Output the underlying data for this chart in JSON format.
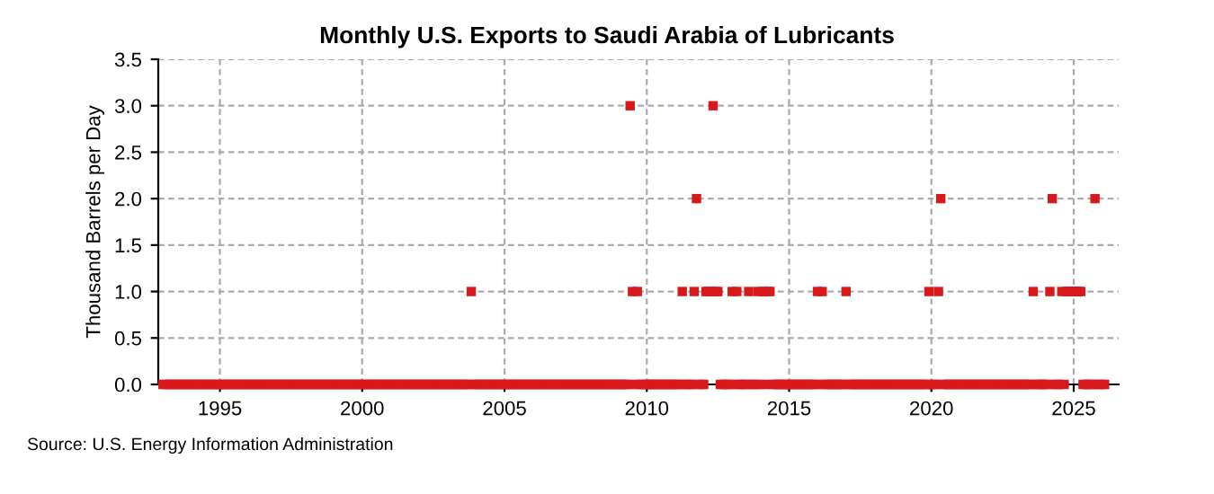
{
  "chart_data": {
    "type": "scatter",
    "title": "Monthly U.S. Exports to Saudi Arabia of Lubricants",
    "ylabel": "Thousand Barrels per Day",
    "annotations": [
      "Source: U.S. Energy Information Administration"
    ],
    "x": [
      "1993-01",
      "1993-02",
      "1993-03",
      "1993-04",
      "1993-05",
      "1993-06",
      "1993-07",
      "1993-08",
      "1993-09",
      "1993-10",
      "1993-11",
      "1993-12",
      "1994-01",
      "1994-02",
      "1994-03",
      "1994-04",
      "1994-05",
      "1994-06",
      "1994-07",
      "1994-08",
      "1994-09",
      "1994-10",
      "1994-11",
      "1994-12",
      "1995-01",
      "1995-02",
      "1995-03",
      "1995-04",
      "1995-05",
      "1995-06",
      "1995-07",
      "1995-08",
      "1995-09",
      "1995-10",
      "1995-11",
      "1995-12",
      "1996-01",
      "1996-02",
      "1996-03",
      "1996-04",
      "1996-05",
      "1996-06",
      "1996-07",
      "1996-08",
      "1996-09",
      "1996-10",
      "1996-11",
      "1996-12",
      "1997-01",
      "1997-02",
      "1997-03",
      "1997-04",
      "1997-05",
      "1997-06",
      "1997-07",
      "1997-08",
      "1997-09",
      "1997-10",
      "1997-11",
      "1997-12",
      "1998-01",
      "1998-02",
      "1998-03",
      "1998-04",
      "1998-05",
      "1998-06",
      "1998-07",
      "1998-08",
      "1998-09",
      "1998-10",
      "1998-11",
      "1998-12",
      "1999-01",
      "1999-02",
      "1999-03",
      "1999-04",
      "1999-05",
      "1999-06",
      "1999-07",
      "1999-08",
      "1999-09",
      "1999-10",
      "1999-11",
      "1999-12",
      "2000-01",
      "2000-02",
      "2000-03",
      "2000-04",
      "2000-05",
      "2000-06",
      "2000-07",
      "2000-08",
      "2000-09",
      "2000-10",
      "2000-11",
      "2000-12",
      "2001-01",
      "2001-02",
      "2001-03",
      "2001-04",
      "2001-05",
      "2001-06",
      "2001-07",
      "2001-08",
      "2001-09",
      "2001-10",
      "2001-11",
      "2001-12",
      "2002-01",
      "2002-02",
      "2002-03",
      "2002-04",
      "2002-05",
      "2002-06",
      "2002-07",
      "2002-08",
      "2002-09",
      "2002-10",
      "2002-11",
      "2002-12",
      "2003-01",
      "2003-02",
      "2003-03",
      "2003-04",
      "2003-05",
      "2003-06",
      "2003-07",
      "2003-08",
      "2003-09",
      "2003-10",
      "2003-11",
      "2003-12",
      "2004-01",
      "2004-02",
      "2004-03",
      "2004-04",
      "2004-05",
      "2004-06",
      "2004-07",
      "2004-08",
      "2004-09",
      "2004-10",
      "2004-11",
      "2004-12",
      "2005-01",
      "2005-02",
      "2005-03",
      "2005-04",
      "2005-05",
      "2005-06",
      "2005-07",
      "2005-08",
      "2005-09",
      "2005-10",
      "2005-11",
      "2005-12",
      "2006-01",
      "2006-02",
      "2006-03",
      "2006-04",
      "2006-05",
      "2006-06",
      "2006-07",
      "2006-08",
      "2006-09",
      "2006-10",
      "2006-11",
      "2006-12",
      "2007-01",
      "2007-02",
      "2007-03",
      "2007-04",
      "2007-05",
      "2007-06",
      "2007-07",
      "2007-08",
      "2007-09",
      "2007-10",
      "2007-11",
      "2007-12",
      "2008-01",
      "2008-02",
      "2008-03",
      "2008-04",
      "2008-05",
      "2008-06",
      "2008-07",
      "2008-08",
      "2008-09",
      "2008-10",
      "2008-11",
      "2008-12",
      "2009-01",
      "2009-02",
      "2009-03",
      "2009-04",
      "2009-05",
      "2009-06",
      "2009-07",
      "2009-08",
      "2009-09",
      "2009-10",
      "2009-11",
      "2009-12",
      "2010-01",
      "2010-02",
      "2010-03",
      "2010-04",
      "2010-05",
      "2010-06",
      "2010-07",
      "2010-08",
      "2010-09",
      "2010-10",
      "2010-11",
      "2010-12",
      "2011-01",
      "2011-02",
      "2011-03",
      "2011-04",
      "2011-05",
      "2011-06",
      "2011-07",
      "2011-08",
      "2011-09",
      "2011-10",
      "2011-11",
      "2011-12",
      "2012-01",
      "2012-02",
      "2012-03",
      "2012-04",
      "2012-05",
      "2012-06",
      "2012-07",
      "2012-08",
      "2012-09",
      "2012-10",
      "2012-11",
      "2012-12",
      "2013-01",
      "2013-02",
      "2013-03",
      "2013-04",
      "2013-05",
      "2013-06",
      "2013-07",
      "2013-08",
      "2013-09",
      "2013-10",
      "2013-11",
      "2013-12",
      "2014-01",
      "2014-02",
      "2014-03",
      "2014-04",
      "2014-05",
      "2014-06",
      "2014-07",
      "2014-08",
      "2014-09",
      "2014-10",
      "2014-11",
      "2014-12",
      "2015-01",
      "2015-02",
      "2015-03",
      "2015-04",
      "2015-05",
      "2015-06",
      "2015-07",
      "2015-08",
      "2015-09",
      "2015-10",
      "2015-11",
      "2015-12",
      "2016-01",
      "2016-02",
      "2016-03",
      "2016-04",
      "2016-05",
      "2016-06",
      "2016-07",
      "2016-08",
      "2016-09",
      "2016-10",
      "2016-11",
      "2016-12",
      "2017-01",
      "2017-02",
      "2017-03",
      "2017-04",
      "2017-05",
      "2017-06",
      "2017-07",
      "2017-08",
      "2017-09",
      "2017-10",
      "2017-11",
      "2017-12",
      "2018-01",
      "2018-02",
      "2018-03",
      "2018-04",
      "2018-05",
      "2018-06",
      "2018-07",
      "2018-08",
      "2018-09",
      "2018-10",
      "2018-11",
      "2018-12",
      "2019-01",
      "2019-02",
      "2019-03",
      "2019-04",
      "2019-05",
      "2019-06",
      "2019-07",
      "2019-08",
      "2019-09",
      "2019-10",
      "2019-11",
      "2019-12",
      "2020-01",
      "2020-02",
      "2020-03",
      "2020-04",
      "2020-05",
      "2020-06",
      "2020-07",
      "2020-08",
      "2020-09",
      "2020-10",
      "2020-11",
      "2020-12",
      "2021-01",
      "2021-02",
      "2021-03",
      "2021-04",
      "2021-05",
      "2021-06",
      "2021-07",
      "2021-08",
      "2021-09",
      "2021-10",
      "2021-11",
      "2021-12",
      "2022-01",
      "2022-02",
      "2022-03",
      "2022-04",
      "2022-05",
      "2022-06",
      "2022-07",
      "2022-08",
      "2022-09",
      "2022-10",
      "2022-11",
      "2022-12",
      "2023-01",
      "2023-02",
      "2023-03",
      "2023-04",
      "2023-05",
      "2023-06",
      "2023-07",
      "2023-08",
      "2023-09",
      "2023-10",
      "2023-11",
      "2023-12",
      "2024-01",
      "2024-02",
      "2024-03",
      "2024-04",
      "2024-05",
      "2024-06",
      "2024-07",
      "2024-08",
      "2024-09",
      "2024-10",
      "2024-11",
      "2024-12",
      "2025-01",
      "2025-02",
      "2025-03",
      "2025-04",
      "2025-05",
      "2025-06",
      "2025-07",
      "2025-08",
      "2025-09",
      "2025-10",
      "2025-11",
      "2025-12",
      "2026-01",
      "2026-02"
    ],
    "series": [
      {
        "color": "#d7191c",
        "values": [
          0,
          0,
          0,
          0,
          0,
          0,
          0,
          0,
          0,
          0,
          0,
          0,
          0,
          0,
          0,
          0,
          0,
          0,
          0,
          0,
          0,
          0,
          0,
          0,
          0,
          0,
          0,
          0,
          0,
          0,
          0,
          0,
          0,
          0,
          0,
          0,
          0,
          0,
          0,
          0,
          0,
          0,
          0,
          0,
          0,
          0,
          0,
          0,
          0,
          0,
          0,
          0,
          0,
          0,
          0,
          0,
          0,
          0,
          0,
          0,
          0,
          0,
          0,
          0,
          0,
          0,
          0,
          0,
          0,
          0,
          0,
          0,
          0,
          0,
          0,
          0,
          0,
          0,
          0,
          0,
          0,
          0,
          0,
          0,
          0,
          0,
          0,
          0,
          0,
          0,
          0,
          0,
          0,
          0,
          0,
          0,
          0,
          0,
          0,
          0,
          0,
          0,
          0,
          0,
          0,
          0,
          0,
          0,
          0,
          0,
          0,
          0,
          0,
          0,
          0,
          0,
          0,
          0,
          0,
          0,
          0,
          0,
          0,
          0,
          0,
          0,
          0,
          0,
          0,
          0,
          1,
          0,
          0,
          0,
          0,
          0,
          0,
          0,
          0,
          0,
          0,
          0,
          0,
          0,
          0,
          0,
          0,
          0,
          0,
          0,
          0,
          0,
          0,
          0,
          0,
          0,
          0,
          0,
          0,
          0,
          0,
          0,
          0,
          0,
          0,
          0,
          0,
          0,
          0,
          0,
          0,
          0,
          0,
          0,
          0,
          0,
          0,
          0,
          0,
          0,
          0,
          0,
          0,
          0,
          0,
          0,
          0,
          0,
          0,
          0,
          0,
          0,
          0,
          0,
          0,
          0,
          0,
          3,
          1,
          0,
          1,
          0,
          0,
          0,
          0,
          0,
          0,
          0,
          0,
          0,
          0,
          0,
          0,
          0,
          0,
          0,
          0,
          0,
          0,
          1,
          0,
          0,
          0,
          0,
          1,
          2,
          0,
          0,
          0,
          1,
          1,
          1,
          3,
          1,
          1,
          0,
          0,
          0,
          0,
          0,
          1,
          0,
          1,
          0,
          0,
          0,
          0,
          1,
          0,
          0,
          0,
          1,
          0,
          1,
          0,
          1,
          1,
          0,
          0,
          0,
          0,
          0,
          0,
          0,
          0,
          0,
          0,
          0,
          0,
          0,
          0,
          0,
          0,
          0,
          0,
          0,
          1,
          0,
          1,
          0,
          0,
          0,
          0,
          0,
          0,
          0,
          0,
          0,
          1,
          0,
          0,
          0,
          0,
          0,
          0,
          0,
          0,
          0,
          0,
          0,
          0,
          0,
          0,
          0,
          0,
          0,
          0,
          0,
          0,
          0,
          0,
          0,
          0,
          0,
          0,
          0,
          0,
          0,
          0,
          0,
          0,
          0,
          0,
          1,
          0,
          0,
          0,
          1,
          2,
          0,
          0,
          0,
          0,
          0,
          0,
          0,
          0,
          0,
          0,
          0,
          0,
          0,
          0,
          0,
          0,
          0,
          0,
          0,
          0,
          0,
          0,
          0,
          0,
          0,
          0,
          0,
          0,
          0,
          0,
          0,
          0,
          0,
          0,
          0,
          0,
          0,
          0,
          1,
          0,
          0,
          0,
          0,
          0,
          0,
          1,
          2,
          0,
          0,
          0,
          1,
          0,
          1,
          1,
          1,
          1,
          1,
          1,
          1,
          0,
          0,
          0,
          0,
          0,
          2,
          0,
          0,
          0,
          0
        ]
      }
    ],
    "marker": "square",
    "grid": true,
    "xlim": [
      "1992-11",
      "2026-08"
    ],
    "xticks": [
      {
        "value": "1995",
        "label": "1995"
      },
      {
        "value": "2000",
        "label": "2000"
      },
      {
        "value": "2005",
        "label": "2005"
      },
      {
        "value": "2010",
        "label": "2010"
      },
      {
        "value": "2015",
        "label": "2015"
      },
      {
        "value": "2020",
        "label": "2020"
      },
      {
        "value": "2025",
        "label": "2025"
      }
    ],
    "ylim": [
      0,
      3.5
    ],
    "yticks": [
      {
        "value": 0,
        "label": "0.0"
      },
      {
        "value": 0.5,
        "label": "0.5"
      },
      {
        "value": 1,
        "label": "1.0"
      },
      {
        "value": 1.5,
        "label": "1.5"
      },
      {
        "value": 2,
        "label": "2.0"
      },
      {
        "value": 2.5,
        "label": "2.5"
      },
      {
        "value": 3,
        "label": "3.0"
      },
      {
        "value": 3.5,
        "label": "3.5"
      }
    ]
  }
}
